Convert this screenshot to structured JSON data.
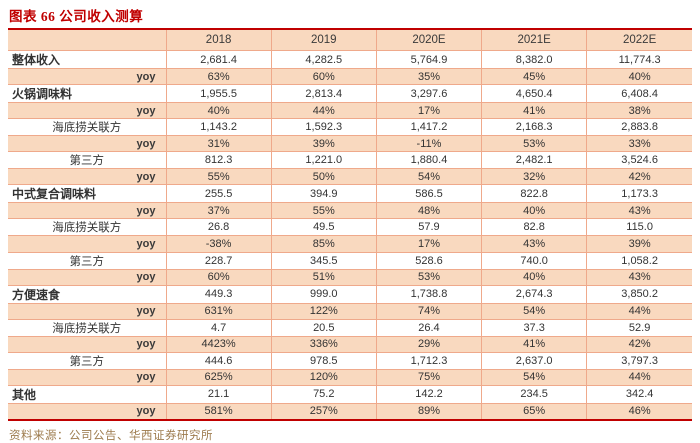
{
  "title": "图表 66 公司收入测算",
  "source": "资料来源：公司公告、华西证券研究所",
  "colors": {
    "accent_red": "#C00000",
    "row_peach": "#F9D9BF",
    "cell_border": "#EFA98B",
    "text": "#333333",
    "source_text": "#9D7B4D"
  },
  "chart_data": {
    "type": "table",
    "title": "图表 66 公司收入测算",
    "columns": [
      "",
      "2018",
      "2019",
      "2020E",
      "2021E",
      "2022E"
    ],
    "rows": [
      {
        "label": "整体收入",
        "style": "category",
        "values": [
          "2,681.4",
          "4,282.5",
          "5,764.9",
          "8,382.0",
          "11,774.3"
        ]
      },
      {
        "label": "yoy",
        "style": "yoy",
        "values": [
          "63%",
          "60%",
          "35%",
          "45%",
          "40%"
        ]
      },
      {
        "label": "火锅调味料",
        "style": "category",
        "values": [
          "1,955.5",
          "2,813.4",
          "3,297.6",
          "4,650.4",
          "6,408.4"
        ]
      },
      {
        "label": "yoy",
        "style": "yoy",
        "values": [
          "40%",
          "44%",
          "17%",
          "41%",
          "38%"
        ]
      },
      {
        "label": "海底捞关联方",
        "style": "sub",
        "values": [
          "1,143.2",
          "1,592.3",
          "1,417.2",
          "2,168.3",
          "2,883.8"
        ]
      },
      {
        "label": "yoy",
        "style": "yoy",
        "values": [
          "31%",
          "39%",
          "-11%",
          "53%",
          "33%"
        ]
      },
      {
        "label": "第三方",
        "style": "sub",
        "values": [
          "812.3",
          "1,221.0",
          "1,880.4",
          "2,482.1",
          "3,524.6"
        ]
      },
      {
        "label": "yoy",
        "style": "yoy",
        "values": [
          "55%",
          "50%",
          "54%",
          "32%",
          "42%"
        ]
      },
      {
        "label": "中式复合调味料",
        "style": "category",
        "values": [
          "255.5",
          "394.9",
          "586.5",
          "822.8",
          "1,173.3"
        ]
      },
      {
        "label": "yoy",
        "style": "yoy",
        "values": [
          "37%",
          "55%",
          "48%",
          "40%",
          "43%"
        ]
      },
      {
        "label": "海底捞关联方",
        "style": "sub",
        "values": [
          "26.8",
          "49.5",
          "57.9",
          "82.8",
          "115.0"
        ]
      },
      {
        "label": "yoy",
        "style": "yoy",
        "values": [
          "-38%",
          "85%",
          "17%",
          "43%",
          "39%"
        ]
      },
      {
        "label": "第三方",
        "style": "sub",
        "values": [
          "228.7",
          "345.5",
          "528.6",
          "740.0",
          "1,058.2"
        ]
      },
      {
        "label": "yoy",
        "style": "yoy",
        "values": [
          "60%",
          "51%",
          "53%",
          "40%",
          "43%"
        ]
      },
      {
        "label": "方便速食",
        "style": "category",
        "values": [
          "449.3",
          "999.0",
          "1,738.8",
          "2,674.3",
          "3,850.2"
        ]
      },
      {
        "label": "yoy",
        "style": "yoy",
        "values": [
          "631%",
          "122%",
          "74%",
          "54%",
          "44%"
        ]
      },
      {
        "label": "海底捞关联方",
        "style": "sub",
        "values": [
          "4.7",
          "20.5",
          "26.4",
          "37.3",
          "52.9"
        ]
      },
      {
        "label": "yoy",
        "style": "yoy",
        "values": [
          "4423%",
          "336%",
          "29%",
          "41%",
          "42%"
        ]
      },
      {
        "label": "第三方",
        "style": "sub",
        "values": [
          "444.6",
          "978.5",
          "1,712.3",
          "2,637.0",
          "3,797.3"
        ]
      },
      {
        "label": "yoy",
        "style": "yoy",
        "values": [
          "625%",
          "120%",
          "75%",
          "54%",
          "44%"
        ]
      },
      {
        "label": "其他",
        "style": "category",
        "values": [
          "21.1",
          "75.2",
          "142.2",
          "234.5",
          "342.4"
        ]
      },
      {
        "label": "yoy",
        "style": "yoy",
        "values": [
          "581%",
          "257%",
          "89%",
          "65%",
          "46%"
        ]
      }
    ]
  }
}
